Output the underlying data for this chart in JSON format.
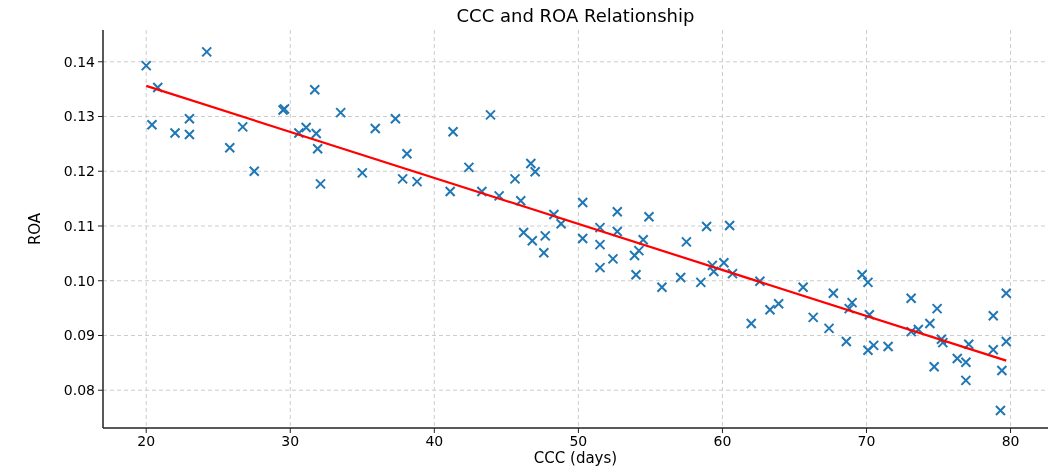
{
  "chart_data": {
    "type": "scatter",
    "title": "CCC and ROA Relationship",
    "xlabel": "CCC (days)",
    "ylabel": "ROA",
    "xlim": [
      17.0,
      82.6
    ],
    "ylim": [
      0.0731,
      0.1458
    ],
    "xticks": [
      20,
      30,
      40,
      50,
      60,
      70,
      80
    ],
    "yticks": [
      0.08,
      0.09,
      {
        "value": 0.1,
        "label": "0.10"
      },
      0.11,
      0.12,
      0.13,
      0.14
    ],
    "grid": true,
    "marker": "cross",
    "series": [
      {
        "color": "#1f77b4",
        "x": [
          20.0,
          20.8,
          20.4,
          22.0,
          23.0,
          23.0,
          24.2,
          25.8,
          26.7,
          27.5,
          29.5,
          29.6,
          30.6,
          31.1,
          31.7,
          31.8,
          31.9,
          32.1,
          33.5,
          35.0,
          35.9,
          37.3,
          37.8,
          38.1,
          38.8,
          41.1,
          41.3,
          42.4,
          43.3,
          43.9,
          44.5,
          45.6,
          46.0,
          46.2,
          46.7,
          47.0,
          46.8,
          47.7,
          47.6,
          48.3,
          48.8,
          50.3,
          50.3,
          51.5,
          51.5,
          51.5,
          52.4,
          52.7,
          52.7,
          54.0,
          53.9,
          54.2,
          54.5,
          54.9,
          55.8,
          57.1,
          57.5,
          58.5,
          58.9,
          59.3,
          59.4,
          60.1,
          60.5,
          60.7,
          62.0,
          62.6,
          63.3,
          63.9,
          65.6,
          66.3,
          67.7,
          67.4,
          68.6,
          69.0,
          68.8,
          69.7,
          70.1,
          70.2,
          70.1,
          70.5,
          71.5,
          73.1,
          73.1,
          73.6,
          74.4,
          74.9,
          74.7,
          75.2,
          75.3,
          76.3,
          76.9,
          77.1,
          76.9,
          78.8,
          78.8,
          79.4,
          79.3,
          79.7,
          79.7
        ],
        "values": [
          0.1393,
          0.1353,
          0.1285,
          0.127,
          0.1267,
          0.1296,
          0.1418,
          0.1243,
          0.1281,
          0.12,
          0.1312,
          0.1314,
          0.127,
          0.128,
          0.1349,
          0.1269,
          0.1241,
          0.1177,
          0.1307,
          0.1197,
          0.1278,
          0.1296,
          0.1186,
          0.1232,
          0.1181,
          0.1163,
          0.1272,
          0.1207,
          0.1163,
          0.1303,
          0.1155,
          0.1186,
          0.1146,
          0.1088,
          0.1214,
          0.1199,
          0.1073,
          0.1082,
          0.1051,
          0.1121,
          0.1104,
          0.1143,
          0.1077,
          0.1097,
          0.1066,
          0.1024,
          0.104,
          0.1126,
          0.109,
          0.1011,
          0.1046,
          0.1055,
          0.1075,
          0.1117,
          0.0988,
          0.1006,
          0.1071,
          0.0997,
          0.1099,
          0.1028,
          0.1017,
          0.1033,
          0.1101,
          0.1013,
          0.0922,
          0.0999,
          0.0947,
          0.0958,
          0.0988,
          0.0933,
          0.0977,
          0.0913,
          0.0889,
          0.096,
          0.0949,
          0.1011,
          0.0997,
          0.0938,
          0.0873,
          0.0882,
          0.088,
          0.0968,
          0.0907,
          0.0911,
          0.0922,
          0.0949,
          0.0843,
          0.0893,
          0.0887,
          0.0858,
          0.0851,
          0.0884,
          0.0818,
          0.0936,
          0.0874,
          0.0836,
          0.0763,
          0.0889,
          0.0977
        ]
      },
      {
        "type": "line",
        "marker": "none",
        "color": "#ff0000",
        "x": [
          20.0,
          79.7
        ],
        "values": [
          0.1356,
          0.0854
        ]
      }
    ]
  }
}
